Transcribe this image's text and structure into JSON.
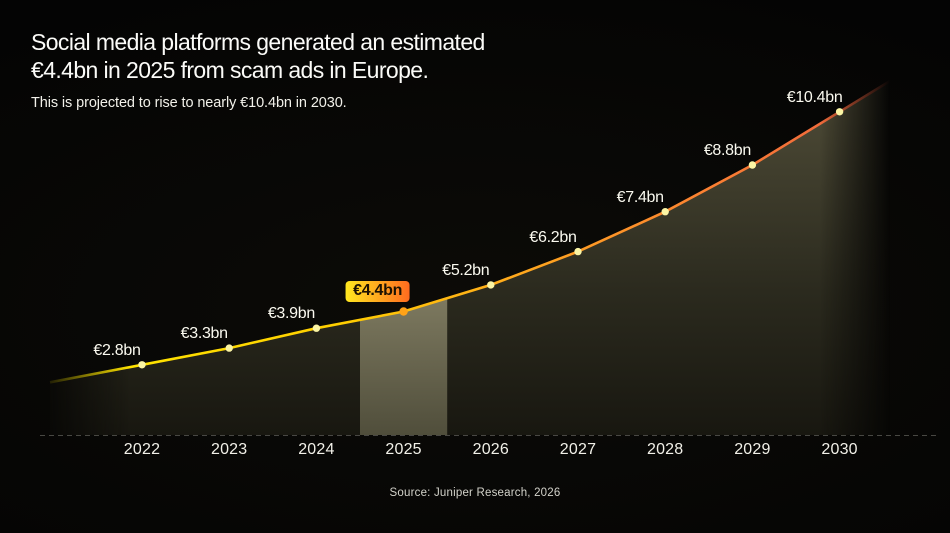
{
  "header": {
    "title_line1": "Social media platforms generated an estimated",
    "title_line2": "€4.4bn in 2025 from scam ads in Europe.",
    "subtitle": "This is projected to rise to nearly €10.4bn in 2030."
  },
  "footer": {
    "source": "Source: Juniper Research, 2026"
  },
  "chart_data": {
    "type": "area",
    "categories": [
      "2022",
      "2023",
      "2024",
      "2025",
      "2026",
      "2027",
      "2028",
      "2029",
      "2030"
    ],
    "values": [
      2.8,
      3.3,
      3.9,
      4.4,
      5.2,
      6.2,
      7.4,
      8.8,
      10.4
    ],
    "point_labels": [
      "€2.8bn",
      "€3.3bn",
      "€3.9bn",
      "€4.4bn",
      "€5.2bn",
      "€6.2bn",
      "€7.4bn",
      "€8.8bn",
      "€10.4bn"
    ],
    "highlight": {
      "category": "2025",
      "label": "€4.4bn"
    },
    "unit": "€ billions per year",
    "ylim": [
      0,
      11
    ],
    "grid": false,
    "legend": "none",
    "colors": {
      "line_start": "#ffec00",
      "line_mid": "#ffaa1c",
      "line_end": "#ea5e41",
      "point": "#fbf5a4",
      "highlight_point": "#ffa217",
      "area_top": "#514e39",
      "area_bottom": "#181710",
      "band_top": "#7f7b61",
      "band_bottom": "#504e3b",
      "badge_from": "#ffe81f",
      "badge_to": "#ff6b1f",
      "badge_text": "#1c1202",
      "axis_line": "#f0efe6",
      "label_text": "#fbfaf0"
    }
  }
}
